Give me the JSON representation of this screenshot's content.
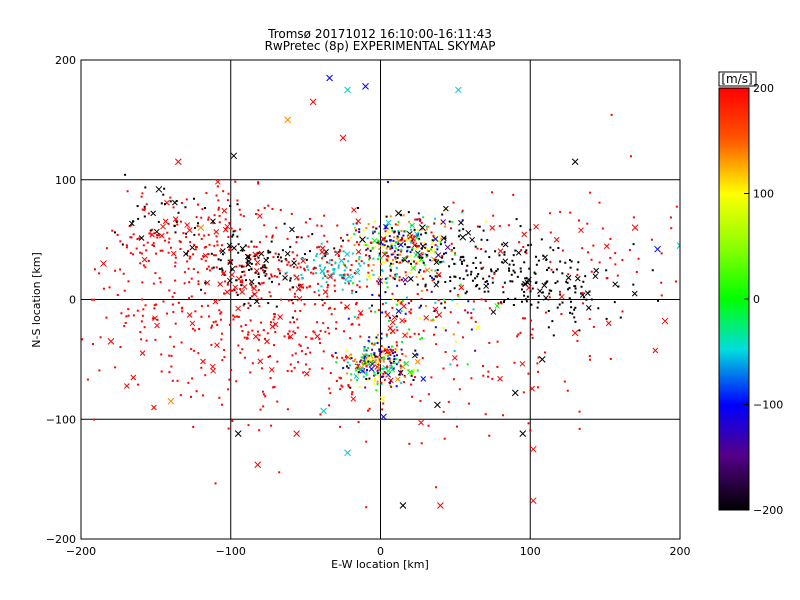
{
  "chart_data": {
    "type": "scatter",
    "title": "Tromsø 20171012 16:10:00-16:11:43",
    "subtitle": "RwPretec (8p) EXPERIMENTAL SKYMAP",
    "xlabel": "E-W location [km]",
    "ylabel": "N-S location [km]",
    "xlim": [
      -200,
      200
    ],
    "ylim": [
      -200,
      200
    ],
    "xticks": [
      -200,
      -100,
      0,
      100,
      200
    ],
    "yticks": [
      -200,
      -100,
      0,
      100,
      200
    ],
    "grid": true,
    "colorbar": {
      "label": "[m/s]",
      "range": [
        -200,
        200
      ],
      "ticks": [
        200,
        100,
        0,
        -100,
        -200
      ],
      "colors": [
        "#ff0000",
        "#ff8800",
        "#ffff00",
        "#00ff00",
        "#00cccc",
        "#0000ff",
        "#550088",
        "#000000"
      ]
    },
    "clusters": [
      {
        "x": 15,
        "y": 45,
        "sx": 18,
        "sy": 14,
        "n": 300,
        "color": "mix"
      },
      {
        "x": 0,
        "y": -55,
        "sx": 12,
        "sy": 9,
        "n": 240,
        "color": "mix"
      },
      {
        "x": -95,
        "y": -10,
        "sx": 55,
        "sy": 45,
        "n": 450,
        "color": "#ff0000"
      },
      {
        "x": -120,
        "y": 50,
        "sx": 30,
        "sy": 20,
        "n": 120,
        "color": "#ff0000"
      },
      {
        "x": -80,
        "y": 28,
        "sx": 20,
        "sy": 15,
        "n": 110,
        "color": "#000000"
      },
      {
        "x": 70,
        "y": 30,
        "sx": 35,
        "sy": 15,
        "n": 170,
        "color": "#000000"
      },
      {
        "x": 120,
        "y": 5,
        "sx": 25,
        "sy": 12,
        "n": 90,
        "color": "#000000"
      },
      {
        "x": -30,
        "y": 25,
        "sx": 12,
        "sy": 8,
        "n": 70,
        "color": "#00cccc"
      },
      {
        "x": -40,
        "y": 30,
        "sx": 35,
        "sy": 20,
        "n": 110,
        "color": "#ff0000"
      },
      {
        "x": 40,
        "y": -50,
        "sx": 60,
        "sy": 40,
        "n": 130,
        "color": "#ff0000"
      },
      {
        "x": 30,
        "y": 0,
        "sx": 25,
        "sy": 25,
        "n": 100,
        "color": "mix"
      },
      {
        "x": 110,
        "y": 30,
        "sx": 45,
        "sy": 35,
        "n": 90,
        "color": "#ff0000"
      },
      {
        "x": -140,
        "y": 70,
        "sx": 20,
        "sy": 15,
        "n": 40,
        "color": "#000000"
      }
    ],
    "crosses": [
      {
        "x": -34,
        "y": 185,
        "color": "#0000ff"
      },
      {
        "x": -22,
        "y": 175,
        "color": "#00cccc"
      },
      {
        "x": -10,
        "y": 178,
        "color": "#0000ff"
      },
      {
        "x": 52,
        "y": 175,
        "color": "#00cccc"
      },
      {
        "x": -62,
        "y": 150,
        "color": "#ff8800"
      },
      {
        "x": -45,
        "y": 165,
        "color": "#ff0000"
      },
      {
        "x": -25,
        "y": 135,
        "color": "#ff0000"
      },
      {
        "x": -98,
        "y": 120,
        "color": "#000000"
      },
      {
        "x": 130,
        "y": 115,
        "color": "#000000"
      },
      {
        "x": -135,
        "y": 115,
        "color": "#ff0000"
      },
      {
        "x": -148,
        "y": 92,
        "color": "#000000"
      },
      {
        "x": -120,
        "y": 60,
        "color": "#ff8800"
      },
      {
        "x": -185,
        "y": 30,
        "color": "#ff0000"
      },
      {
        "x": -180,
        "y": -35,
        "color": "#ff0000"
      },
      {
        "x": -140,
        "y": -85,
        "color": "#ff8800"
      },
      {
        "x": -95,
        "y": -112,
        "color": "#000000"
      },
      {
        "x": -22,
        "y": -128,
        "color": "#00cccc"
      },
      {
        "x": 2,
        "y": -98,
        "color": "#0000ff"
      },
      {
        "x": 15,
        "y": -172,
        "color": "#000000"
      },
      {
        "x": 40,
        "y": -172,
        "color": "#ff0000"
      },
      {
        "x": 38,
        "y": -88,
        "color": "#000000"
      },
      {
        "x": 95,
        "y": -112,
        "color": "#000000"
      },
      {
        "x": 102,
        "y": -125,
        "color": "#ff0000"
      },
      {
        "x": 102,
        "y": -168,
        "color": "#ff0000"
      },
      {
        "x": 90,
        "y": -78,
        "color": "#000000"
      },
      {
        "x": 108,
        "y": -50,
        "color": "#000000"
      },
      {
        "x": 130,
        "y": -28,
        "color": "#ff0000"
      },
      {
        "x": 185,
        "y": 42,
        "color": "#0000ff"
      },
      {
        "x": 200,
        "y": 45,
        "color": "#00cccc"
      },
      {
        "x": 170,
        "y": 60,
        "color": "#ff0000"
      },
      {
        "x": 190,
        "y": -18,
        "color": "#ff0000"
      },
      {
        "x": -82,
        "y": -138,
        "color": "#ff0000"
      },
      {
        "x": -56,
        "y": -112,
        "color": "#ff0000"
      },
      {
        "x": -38,
        "y": -93,
        "color": "#00cccc"
      },
      {
        "x": 12,
        "y": 72,
        "color": "#000000"
      },
      {
        "x": 28,
        "y": 60,
        "color": "#000000"
      },
      {
        "x": 55,
        "y": 52,
        "color": "#000000"
      },
      {
        "x": -12,
        "y": 50,
        "color": "#000000"
      }
    ]
  }
}
